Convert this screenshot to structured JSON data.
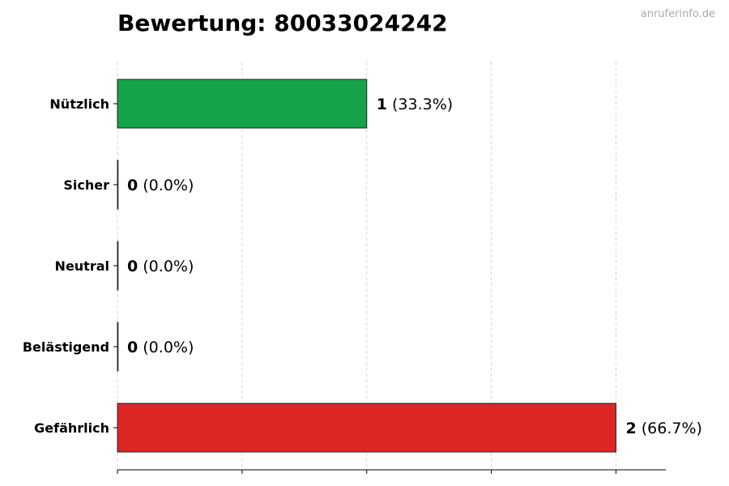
{
  "title": "Bewertung: 80033024242",
  "watermark": "anruferinfo.de",
  "chart_data": {
    "type": "bar",
    "orientation": "horizontal",
    "title": "Bewertung: 80033024242",
    "xlabel": "",
    "ylabel": "",
    "xlim": [
      0,
      2.2
    ],
    "xticks": [
      0,
      0.5,
      1,
      1.5,
      2
    ],
    "grid": "vertical dashed",
    "categories": [
      "Nützlich",
      "Sicher",
      "Neutral",
      "Belästigend",
      "Gefährlich"
    ],
    "values": [
      1,
      0,
      0,
      0,
      2
    ],
    "percent_labels": [
      "(33.3%)",
      "(0.0%)",
      "(0.0%)",
      "(0.0%)",
      "(66.7%)"
    ],
    "colors": [
      "#16a34a",
      "#16a34a",
      "#888888",
      "#f59e0b",
      "#dc2626"
    ]
  }
}
